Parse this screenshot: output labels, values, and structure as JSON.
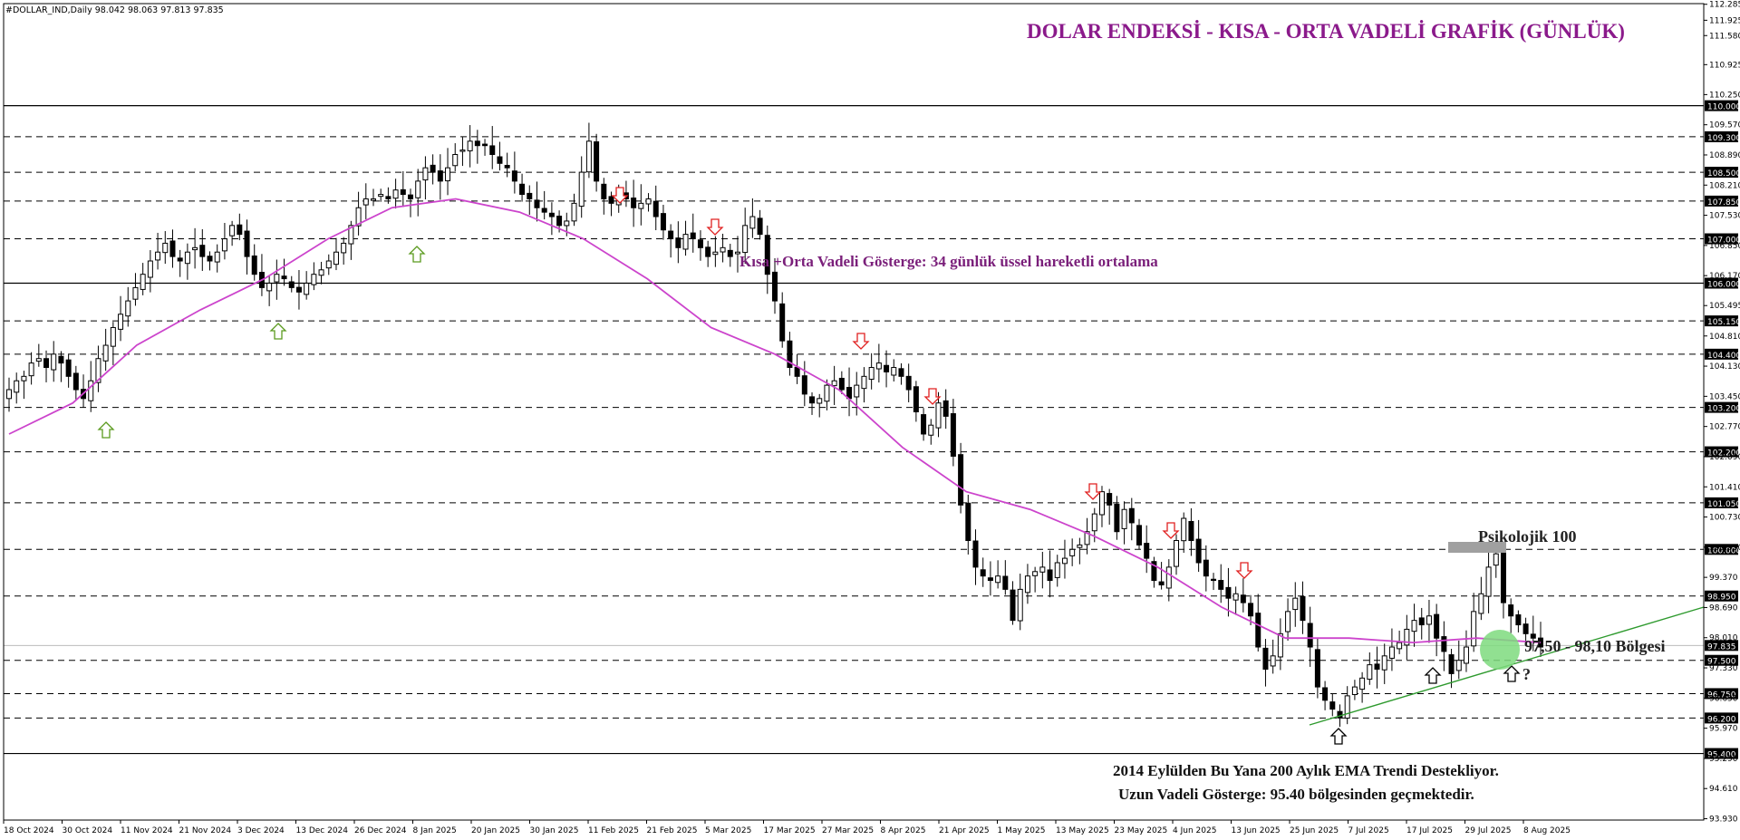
{
  "symbol_header": "#DOLLAR_IND,Daily  98.042 98.063 97.813 97.835",
  "title": "DOLAR ENDEKSİ - KISA - ORTA VADELİ GRAFİK (GÜNLÜK)",
  "colors": {
    "title": "#8B1A8B",
    "ema": "#CC44CC",
    "ema_label": "#7A1F7A",
    "bull_arrow": "#5A9A1E",
    "bear_arrow": "#E02020",
    "neutral_arrow": "#000000",
    "trendline": "#2E9A2E",
    "zone": "#7EDB7E",
    "candle": "#000000",
    "psych_box": "#A0A0A0"
  },
  "annotations": {
    "ema_label": "Kısa +Orta Vadeli Gösterge: 34 günlük üssel hareketli ortalama",
    "psychological": "Psikolojik 100",
    "zone_label": "97,50 - 98,10 Bölgesi",
    "question": "?",
    "bottom_line1": "2014 Eylülden Bu Yana 200 Aylık EMA Trendi Destekliyor.",
    "bottom_line2": "Uzun Vadeli Gösterge: 95.40 bölgesinden geçmektedir."
  },
  "chart_data": {
    "type": "candlestick",
    "title": "DOLAR ENDEKSİ - KISA - ORTA VADELİ GRAFİK (GÜNLÜK)",
    "timeframe": "Daily",
    "ylim": [
      93.93,
      112.28
    ],
    "y_ticks": [
      "112.285",
      "111.925",
      "111.580",
      "110.925",
      "110.250",
      "109.570",
      "108.890",
      "108.210",
      "107.530",
      "106.850",
      "106.170",
      "105.495",
      "104.810",
      "104.130",
      "103.450",
      "102.770",
      "102.090",
      "101.410",
      "100.730",
      "100.050",
      "99.370",
      "98.690",
      "98.010",
      "97.330",
      "96.650",
      "95.970",
      "95.290",
      "94.610",
      "93.930"
    ],
    "dated_levels": [
      "110.000",
      "109.300",
      "108.500",
      "107.850",
      "107.000",
      "106.000",
      "105.150",
      "104.400",
      "103.200",
      "102.200",
      "101.050",
      "100.000",
      "98.950",
      "97.835",
      "97.500",
      "96.750",
      "96.200",
      "95.400"
    ],
    "solid_levels": [
      110.0,
      106.0,
      95.4
    ],
    "current_price_level": 97.835,
    "x_labels": [
      "18 Oct 2024",
      "30 Oct 2024",
      "11 Nov 2024",
      "21 Nov 2024",
      "3 Dec 2024",
      "13 Dec 2024",
      "26 Dec 2024",
      "8 Jan 2025",
      "20 Jan 2025",
      "30 Jan 2025",
      "11 Feb 2025",
      "21 Feb 2025",
      "5 Mar 2025",
      "17 Mar 2025",
      "27 Mar 2025",
      "8 Apr 2025",
      "21 Apr 2025",
      "1 May 2025",
      "13 May 2025",
      "23 May 2025",
      "4 Jun 2025",
      "13 Jun 2025",
      "25 Jun 2025",
      "7 Jul 2025",
      "17 Jul 2025",
      "29 Jul 2025",
      "8 Aug 2025"
    ],
    "ohlc_close": [
      103.6,
      103.8,
      103.9,
      104.2,
      104.3,
      104.1,
      104.4,
      104.2,
      103.9,
      103.6,
      103.4,
      103.8,
      104.3,
      104.6,
      105.0,
      105.3,
      105.6,
      105.9,
      106.2,
      106.5,
      106.7,
      106.9,
      106.6,
      106.5,
      106.7,
      106.8,
      106.6,
      106.5,
      106.7,
      107.0,
      107.3,
      107.1,
      106.6,
      106.2,
      105.9,
      106.0,
      106.2,
      106.1,
      105.9,
      105.8,
      106.0,
      106.2,
      106.3,
      106.5,
      106.7,
      106.9,
      107.3,
      107.7,
      107.9,
      107.9,
      108.0,
      107.9,
      108.1,
      108.0,
      107.9,
      108.3,
      108.6,
      108.5,
      108.3,
      108.6,
      108.9,
      109.0,
      109.2,
      109.1,
      109.1,
      108.9,
      108.7,
      108.6,
      108.3,
      108.0,
      107.9,
      107.7,
      107.6,
      107.5,
      107.3,
      107.4,
      107.8,
      108.5,
      109.2,
      108.3,
      107.9,
      107.8,
      108.0,
      107.9,
      107.7,
      107.8,
      107.9,
      107.5,
      107.2,
      107.0,
      106.8,
      107.1,
      107.0,
      106.8,
      106.6,
      106.7,
      106.8,
      106.6,
      106.7,
      107.3,
      107.5,
      107.1,
      106.2,
      105.6,
      104.7,
      104.1,
      103.9,
      103.5,
      103.3,
      103.4,
      103.7,
      103.8,
      103.6,
      103.4,
      103.7,
      103.9,
      104.1,
      104.2,
      104.0,
      104.1,
      103.9,
      103.6,
      103.1,
      102.6,
      102.8,
      103.3,
      103.0,
      102.1,
      101.0,
      100.2,
      99.6,
      99.4,
      99.3,
      99.4,
      99.1,
      98.4,
      99.1,
      99.4,
      99.5,
      99.6,
      99.3,
      99.7,
      99.8,
      100.0,
      100.1,
      100.4,
      100.8,
      101.3,
      101.0,
      100.4,
      100.9,
      100.6,
      100.1,
      99.8,
      99.3,
      99.2,
      99.6,
      100.2,
      100.7,
      100.2,
      99.7,
      99.4,
      99.3,
      99.1,
      98.9,
      99.0,
      98.8,
      98.5,
      97.8,
      97.3,
      97.6,
      98.1,
      98.6,
      98.9,
      98.4,
      97.8,
      96.9,
      96.6,
      96.4,
      96.2,
      96.7,
      96.9,
      97.1,
      97.4,
      97.3,
      97.6,
      97.8,
      97.9,
      98.2,
      98.4,
      98.3,
      98.5,
      98.0,
      97.7,
      97.2,
      97.5,
      97.8,
      98.6,
      99.0,
      99.6,
      99.9,
      98.8,
      98.5,
      98.3,
      98.1,
      98.0,
      97.8
    ],
    "ema_period": 34,
    "ema_label": "34 günlük üssel hareketli ortalama",
    "ema_approx": [
      [
        0,
        102.6
      ],
      [
        20,
        103.3
      ],
      [
        40,
        104.6
      ],
      [
        60,
        105.4
      ],
      [
        80,
        106.1
      ],
      [
        100,
        107.0
      ],
      [
        120,
        107.7
      ],
      [
        140,
        107.9
      ],
      [
        160,
        107.6
      ],
      [
        180,
        107.0
      ],
      [
        200,
        106.1
      ],
      [
        220,
        105.0
      ],
      [
        240,
        104.4
      ],
      [
        260,
        103.6
      ],
      [
        280,
        102.3
      ],
      [
        300,
        101.3
      ],
      [
        320,
        100.9
      ],
      [
        340,
        100.3
      ],
      [
        360,
        99.6
      ],
      [
        380,
        98.7
      ],
      [
        400,
        98.0
      ],
      [
        420,
        98.0
      ],
      [
        440,
        97.9
      ],
      [
        460,
        98.0
      ],
      [
        480,
        97.9
      ]
    ]
  }
}
